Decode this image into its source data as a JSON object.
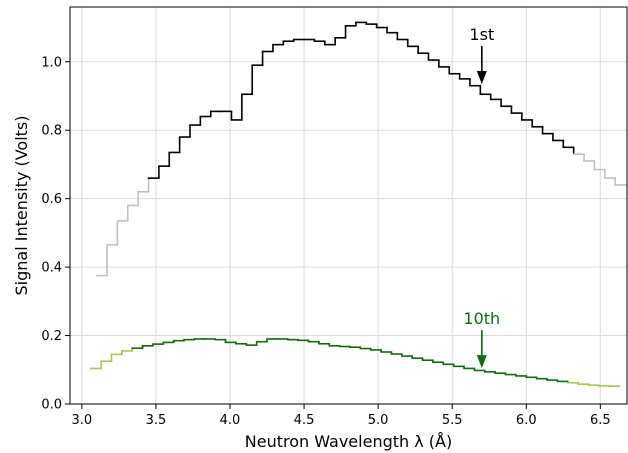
{
  "chart_data": {
    "type": "line",
    "step": true,
    "grid": true,
    "xlabel": "Neutron Wavelength λ  (Å)",
    "ylabel": "Signal Intensity (Volts)",
    "xlim": [
      2.92,
      6.68
    ],
    "ylim": [
      0.0,
      1.16
    ],
    "xticks": [
      3.0,
      3.5,
      4.0,
      4.5,
      5.0,
      5.5,
      6.0,
      6.5
    ],
    "xtick_labels": [
      "3.0",
      "3.5",
      "4.0",
      "4.5",
      "5.0",
      "5.5",
      "6.0",
      "6.5"
    ],
    "yticks": [
      0.0,
      0.2,
      0.4,
      0.6,
      0.8,
      1.0
    ],
    "ytick_labels": [
      "0.0",
      "0.2",
      "0.4",
      "0.6",
      "0.8",
      "1.0"
    ],
    "series": [
      {
        "id": "first-order",
        "color": "#000000",
        "fade_color": "#c0c0c0",
        "solid_range": [
          3.42,
          6.3
        ],
        "x": [
          3.1,
          3.17,
          3.24,
          3.31,
          3.38,
          3.45,
          3.52,
          3.59,
          3.66,
          3.73,
          3.8,
          3.87,
          3.94,
          4.01,
          4.08,
          4.15,
          4.22,
          4.29,
          4.36,
          4.43,
          4.5,
          4.57,
          4.64,
          4.71,
          4.78,
          4.85,
          4.92,
          4.99,
          5.06,
          5.13,
          5.2,
          5.27,
          5.34,
          5.41,
          5.48,
          5.55,
          5.62,
          5.69,
          5.76,
          5.83,
          5.9,
          5.97,
          6.04,
          6.11,
          6.18,
          6.25,
          6.32,
          6.39,
          6.46,
          6.53,
          6.6
        ],
        "y": [
          0.375,
          0.465,
          0.535,
          0.58,
          0.62,
          0.66,
          0.695,
          0.735,
          0.78,
          0.815,
          0.84,
          0.855,
          0.855,
          0.83,
          0.905,
          0.99,
          1.03,
          1.05,
          1.06,
          1.065,
          1.065,
          1.06,
          1.05,
          1.07,
          1.105,
          1.115,
          1.11,
          1.1,
          1.085,
          1.065,
          1.045,
          1.025,
          1.005,
          0.985,
          0.965,
          0.95,
          0.93,
          0.905,
          0.89,
          0.87,
          0.85,
          0.83,
          0.81,
          0.79,
          0.77,
          0.75,
          0.73,
          0.71,
          0.685,
          0.66,
          0.64
        ]
      },
      {
        "id": "tenth-order",
        "color": "#0a6e0a",
        "fade_color": "#9ccc4a",
        "solid_range": [
          3.32,
          6.25
        ],
        "x": [
          3.06,
          3.13,
          3.2,
          3.27,
          3.34,
          3.41,
          3.48,
          3.55,
          3.62,
          3.69,
          3.76,
          3.83,
          3.9,
          3.97,
          4.04,
          4.11,
          4.18,
          4.25,
          4.32,
          4.39,
          4.46,
          4.53,
          4.6,
          4.67,
          4.74,
          4.81,
          4.88,
          4.95,
          5.02,
          5.09,
          5.16,
          5.23,
          5.3,
          5.37,
          5.44,
          5.51,
          5.58,
          5.65,
          5.72,
          5.79,
          5.86,
          5.93,
          6.0,
          6.07,
          6.14,
          6.21,
          6.28,
          6.35,
          6.42,
          6.49,
          6.56
        ],
        "y": [
          0.104,
          0.125,
          0.145,
          0.155,
          0.163,
          0.17,
          0.175,
          0.18,
          0.185,
          0.188,
          0.19,
          0.19,
          0.188,
          0.18,
          0.176,
          0.172,
          0.182,
          0.19,
          0.19,
          0.188,
          0.186,
          0.182,
          0.176,
          0.17,
          0.168,
          0.166,
          0.162,
          0.158,
          0.152,
          0.146,
          0.14,
          0.134,
          0.128,
          0.122,
          0.116,
          0.11,
          0.104,
          0.098,
          0.094,
          0.09,
          0.086,
          0.082,
          0.078,
          0.074,
          0.07,
          0.066,
          0.062,
          0.058,
          0.055,
          0.053,
          0.052
        ]
      }
    ],
    "annotations": [
      {
        "text": "1st",
        "x": 5.7,
        "y_tip": 0.935,
        "color": "#000000"
      },
      {
        "text": "10th",
        "x": 5.7,
        "y_tip": 0.105,
        "color": "#0a6e0a"
      }
    ]
  }
}
